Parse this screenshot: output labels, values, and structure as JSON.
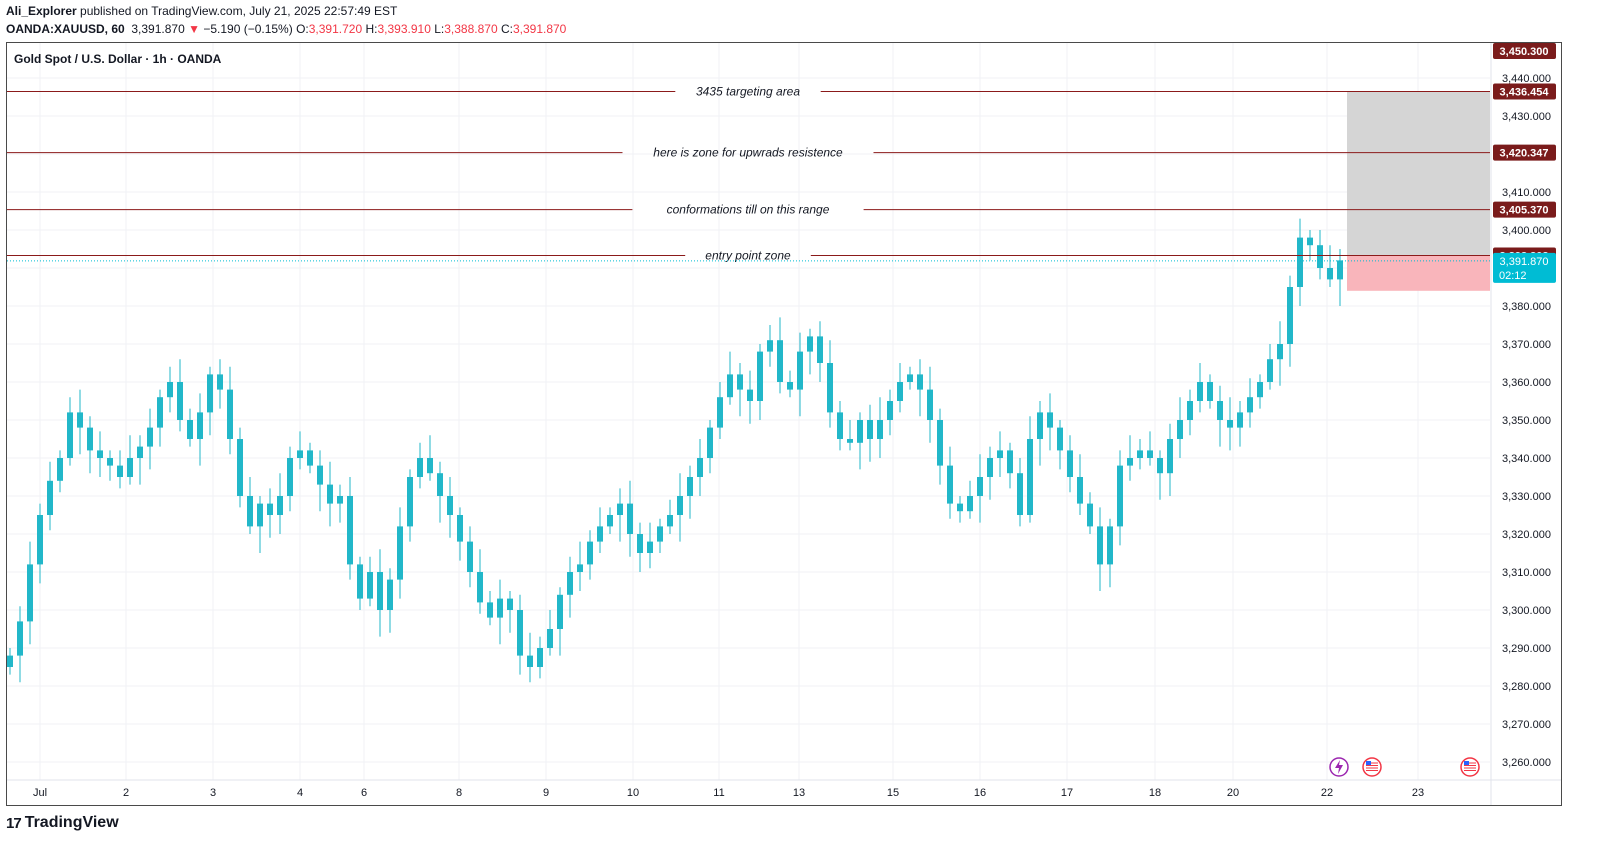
{
  "header": {
    "author": "Ali_Explorer",
    "published_text": " published on TradingView.com, July 21, 2025 22:57:49 EST",
    "symbol": "OANDA:XAUUSD, 60",
    "last": "3,391.870",
    "change_arrow": "▼",
    "change": "−5.190 (−0.15%)",
    "o_label": "O:",
    "o_value": "3,391.720",
    "h_label": "H:",
    "h_value": "3,393.910",
    "l_label": "L:",
    "l_value": "3,388.870",
    "c_label": "C:",
    "c_value": "3,391.870"
  },
  "legend": "Gold Spot / U.S. Dollar · 1h · OANDA",
  "brand": {
    "logo": "17",
    "name": "TradingView"
  },
  "colors": {
    "up": "#26a69a",
    "down": "#26a69a",
    "candle": "#22b7c9",
    "level_line": "#8b1a1a",
    "label_bg": "#7a1b1b",
    "current_bg": "#00bcd4",
    "target_zone": "#d3d3d3",
    "stop_zone": "#f9b1b7",
    "grid": "#f0f3fa"
  },
  "icons": [
    "lightning-icon",
    "us-flag-icon",
    "us-flag-icon"
  ],
  "chart_data": {
    "type": "candlestick",
    "title": "Gold Spot / U.S. Dollar · 1h · OANDA",
    "ylim": [
      3255,
      3455
    ],
    "y_ticks": [
      "3,260.000",
      "3,270.000",
      "3,280.000",
      "3,290.000",
      "3,300.000",
      "3,310.000",
      "3,320.000",
      "3,330.000",
      "3,340.000",
      "3,350.000",
      "3,360.000",
      "3,370.000",
      "3,380.000",
      "3,390.000",
      "3,400.000",
      "3,410.000",
      "3,420.000",
      "3,430.000",
      "3,440.000"
    ],
    "x_ticks": [
      "Jul",
      "2",
      "3",
      "4",
      "6",
      "8",
      "9",
      "10",
      "11",
      "13",
      "15",
      "16",
      "17",
      "18",
      "20",
      "22",
      "23"
    ],
    "path_close": [
      3288,
      3297,
      3312,
      3325,
      3334,
      3340,
      3352,
      3348,
      3342,
      3340,
      3338,
      3335,
      3340,
      3343,
      3348,
      3356,
      3360,
      3350,
      3345,
      3352,
      3362,
      3358,
      3345,
      3330,
      3322,
      3328,
      3325,
      3330,
      3340,
      3342,
      3338,
      3333,
      3328,
      3330,
      3312,
      3303,
      3310,
      3300,
      3308,
      3322,
      3335,
      3340,
      3336,
      3330,
      3325,
      3318,
      3310,
      3302,
      3298,
      3303,
      3300,
      3288,
      3285,
      3290,
      3295,
      3304,
      3310,
      3312,
      3318,
      3322,
      3325,
      3328,
      3320,
      3315,
      3318,
      3322,
      3325,
      3330,
      3335,
      3340,
      3348,
      3356,
      3362,
      3358,
      3355,
      3368,
      3371,
      3360,
      3358,
      3368,
      3372,
      3365,
      3352,
      3345,
      3344,
      3350,
      3345,
      3350,
      3355,
      3360,
      3362,
      3358,
      3350,
      3338,
      3328,
      3326,
      3330,
      3335,
      3340,
      3342,
      3336,
      3325,
      3345,
      3352,
      3348,
      3342,
      3335,
      3328,
      3322,
      3312,
      3322,
      3338,
      3340,
      3342,
      3340,
      3336,
      3345,
      3350,
      3355,
      3360,
      3355,
      3350,
      3348,
      3352,
      3356,
      3360,
      3366,
      3370,
      3385,
      3398,
      3396,
      3390,
      3387,
      3392
    ],
    "levels": [
      {
        "label": "3435 targeting area",
        "value": 3436.454,
        "tag": "3,436.454"
      },
      {
        "label": "here is zone for upwrads resistence",
        "value": 3420.347,
        "tag": "3,420.347"
      },
      {
        "label": "conformations till on this range",
        "value": 3405.37,
        "tag": "3,405.370"
      },
      {
        "label": "entry point zone",
        "value": 3393.302,
        "tag": "3,393.302"
      }
    ],
    "top_tag": {
      "value": 3450.3,
      "tag": "3,450.300"
    },
    "current_price": {
      "value": 3391.87,
      "tag": "3,391.870",
      "countdown": "02:12"
    },
    "position": {
      "entry": 3393.302,
      "target": 3436.454,
      "stop": 3384.0
    }
  }
}
